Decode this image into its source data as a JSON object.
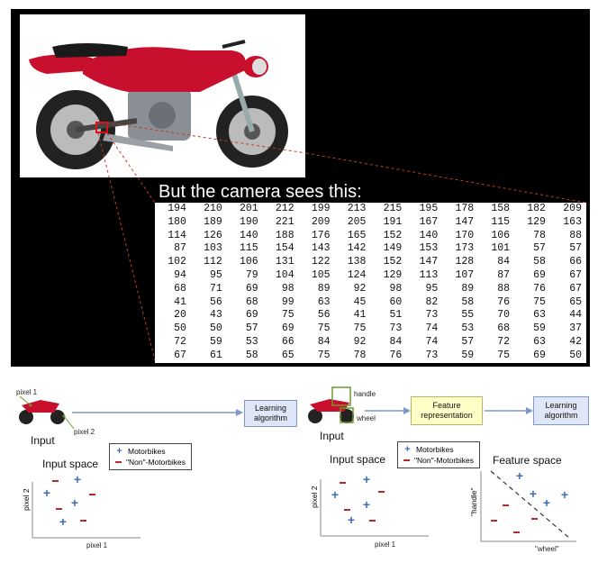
{
  "caption": "But the camera sees this:",
  "pixel_values": [
    [
      194,
      210,
      201,
      212,
      199,
      213,
      215,
      195,
      178,
      158,
      182,
      209
    ],
    [
      180,
      189,
      190,
      221,
      209,
      205,
      191,
      167,
      147,
      115,
      129,
      163
    ],
    [
      114,
      126,
      140,
      188,
      176,
      165,
      152,
      140,
      170,
      106,
      78,
      88
    ],
    [
      87,
      103,
      115,
      154,
      143,
      142,
      149,
      153,
      173,
      101,
      57,
      57
    ],
    [
      102,
      112,
      106,
      131,
      122,
      138,
      152,
      147,
      128,
      84,
      58,
      66
    ],
    [
      94,
      95,
      79,
      104,
      105,
      124,
      129,
      113,
      107,
      87,
      69,
      67
    ],
    [
      68,
      71,
      69,
      98,
      89,
      92,
      98,
      95,
      89,
      88,
      76,
      67
    ],
    [
      41,
      56,
      68,
      99,
      63,
      45,
      60,
      82,
      58,
      76,
      75,
      65
    ],
    [
      20,
      43,
      69,
      75,
      56,
      41,
      51,
      73,
      55,
      70,
      63,
      44
    ],
    [
      50,
      50,
      57,
      69,
      75,
      75,
      73,
      74,
      53,
      68,
      59,
      37
    ],
    [
      72,
      59,
      53,
      66,
      84,
      92,
      84,
      74,
      57,
      72,
      63,
      42
    ],
    [
      67,
      61,
      58,
      65,
      75,
      78,
      76,
      73,
      59,
      75,
      69,
      50
    ]
  ],
  "left_diagram": {
    "pixel1_label": "pixel 1",
    "pixel2_label": "pixel 2",
    "input_label": "Input",
    "learning_box": "Learning algorithm",
    "space_title": "Input space",
    "legend": {
      "motorbikes": "Motorbikes",
      "non_motorbikes": "\"Non\"-Motorbikes"
    },
    "x_axis": "pixel 1",
    "y_axis": "pixel 2"
  },
  "right_diagram": {
    "handle_label": "handle",
    "wheel_label": "wheel",
    "input_label": "Input",
    "feature_box": "Feature representation",
    "learning_box": "Learning algorithm",
    "input_space_title": "Input space",
    "feature_space_title": "Feature space",
    "legend": {
      "motorbikes": "Motorbikes",
      "non_motorbikes": "\"Non\"-Motorbikes"
    },
    "input_x_axis": "pixel 1",
    "input_y_axis": "pixel 2",
    "feature_x_axis": "\"wheel\"",
    "feature_y_axis": "\"handle\""
  },
  "colors": {
    "motorbike_marker": "#3d6fb6",
    "non_motorbike_marker": "#b52a2a",
    "zoom_line": "#c0392b",
    "box_fill": "#dfe6f6",
    "feature_box_fill": "#ffffc8"
  }
}
